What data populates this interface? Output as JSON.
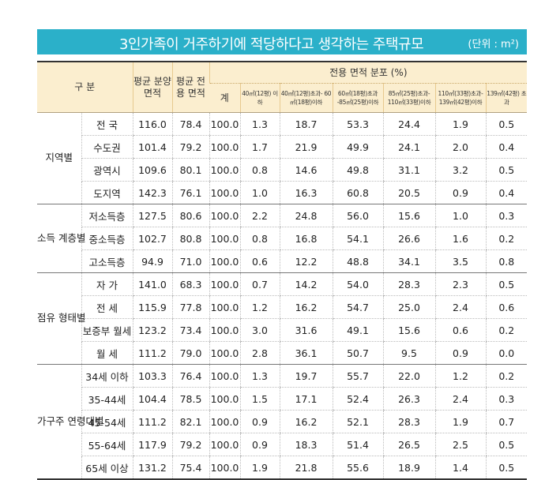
{
  "title": {
    "main": "3인가족이 거주하기에 적당하다고 생각하는 주택규모",
    "unit": "(단위 : m²)"
  },
  "header": {
    "category": "구 분",
    "sale_area": "평균 분양 면적",
    "exclusive_area": "평균 전용 면적",
    "distribution": "전용 면적 분포 (%)",
    "subcolumns": [
      "계",
      "40㎡(12평) 이하",
      "40㎡(12평)초과- 60㎡(18평)이하",
      "60㎡(18평)초과 -85㎡(25평)이하",
      "85㎡(25평)초과- 110㎡(33평)이하",
      "110㎡(33평)초과- 139㎡(42평)이하",
      "139㎡(42평) 초과"
    ]
  },
  "groups": [
    {
      "name": "지역별",
      "rows": [
        {
          "label": "전  국",
          "values": [
            "116.0",
            "78.4",
            "100.0",
            "1.3",
            "18.7",
            "53.3",
            "24.4",
            "1.9",
            "0.5"
          ]
        },
        {
          "label": "수도권",
          "values": [
            "101.4",
            "79.2",
            "100.0",
            "1.7",
            "21.9",
            "49.9",
            "24.1",
            "2.0",
            "0.4"
          ]
        },
        {
          "label": "광역시",
          "values": [
            "109.6",
            "80.1",
            "100.0",
            "0.8",
            "14.6",
            "49.8",
            "31.1",
            "3.2",
            "0.5"
          ]
        },
        {
          "label": "도지역",
          "values": [
            "142.3",
            "76.1",
            "100.0",
            "1.0",
            "16.3",
            "60.8",
            "20.5",
            "0.9",
            "0.4"
          ]
        }
      ]
    },
    {
      "name": "소득 계층별",
      "rows": [
        {
          "label": "저소득층",
          "values": [
            "127.5",
            "80.6",
            "100.0",
            "2.2",
            "24.8",
            "56.0",
            "15.6",
            "1.0",
            "0.3"
          ]
        },
        {
          "label": "중소득층",
          "values": [
            "102.7",
            "80.8",
            "100.0",
            "0.8",
            "16.8",
            "54.1",
            "26.6",
            "1.6",
            "0.2"
          ]
        },
        {
          "label": "고소득층",
          "values": [
            "94.9",
            "71.0",
            "100.0",
            "0.6",
            "12.2",
            "48.8",
            "34.1",
            "3.5",
            "0.8"
          ]
        }
      ]
    },
    {
      "name": "점유 형태별",
      "rows": [
        {
          "label": "자 가",
          "values": [
            "141.0",
            "68.3",
            "100.0",
            "0.7",
            "14.2",
            "54.0",
            "28.3",
            "2.3",
            "0.5"
          ]
        },
        {
          "label": "전 세",
          "values": [
            "115.9",
            "77.8",
            "100.0",
            "1.2",
            "16.2",
            "54.7",
            "25.0",
            "2.4",
            "0.6"
          ]
        },
        {
          "label": "보증부 월세",
          "values": [
            "123.2",
            "73.4",
            "100.0",
            "3.0",
            "31.6",
            "49.1",
            "15.6",
            "0.6",
            "0.2"
          ]
        },
        {
          "label": "월 세",
          "values": [
            "111.2",
            "79.0",
            "100.0",
            "2.8",
            "36.1",
            "50.7",
            "9.5",
            "0.9",
            "0.0"
          ]
        }
      ]
    },
    {
      "name": "가구주 연령대별",
      "rows": [
        {
          "label": "34세 이하",
          "values": [
            "103.3",
            "76.4",
            "100.0",
            "1.3",
            "19.7",
            "55.7",
            "22.0",
            "1.2",
            "0.2"
          ]
        },
        {
          "label": "35-44세",
          "values": [
            "104.4",
            "78.5",
            "100.0",
            "1.5",
            "17.1",
            "52.4",
            "26.3",
            "2.4",
            "0.3"
          ]
        },
        {
          "label": "45-54세",
          "values": [
            "111.2",
            "82.1",
            "100.0",
            "0.9",
            "16.2",
            "52.1",
            "28.3",
            "1.9",
            "0.7"
          ]
        },
        {
          "label": "55-64세",
          "values": [
            "117.9",
            "79.2",
            "100.0",
            "0.9",
            "18.3",
            "51.4",
            "26.5",
            "2.5",
            "0.5"
          ]
        },
        {
          "label": "65세 이상",
          "values": [
            "131.2",
            "75.4",
            "100.0",
            "1.9",
            "21.8",
            "55.6",
            "18.9",
            "1.4",
            "0.5"
          ]
        }
      ]
    }
  ],
  "colors": {
    "title_bg": "#2bb0c9",
    "header_bg": "#fbeecf"
  }
}
